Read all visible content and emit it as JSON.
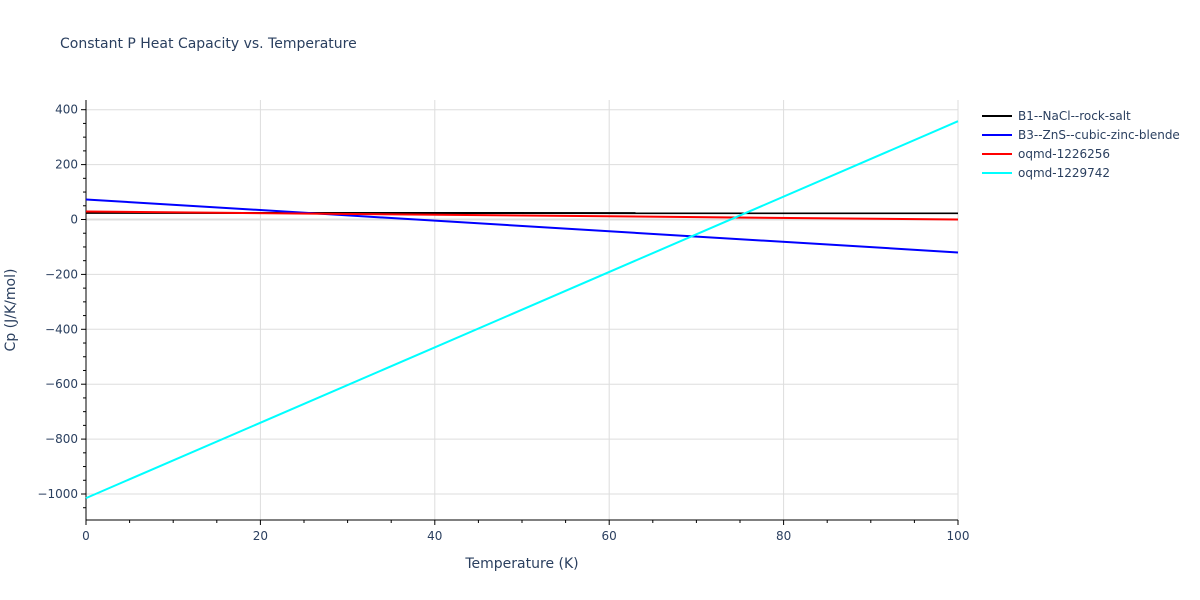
{
  "chart_data": {
    "type": "line",
    "title": "Constant P Heat Capacity vs. Temperature",
    "xlabel": "Temperature (K)",
    "ylabel": "Cp (J/K/mol)",
    "xlim": [
      0,
      100
    ],
    "ylim": [
      -1080,
      435
    ],
    "x_ticks": [
      0,
      20,
      40,
      60,
      80,
      100
    ],
    "y_ticks": [
      400,
      200,
      0,
      -200,
      -400,
      -600,
      -800,
      -1000
    ],
    "y_tick_labels": [
      "400",
      "200",
      "0",
      "−200",
      "−400",
      "−600",
      "−800",
      "−1000"
    ],
    "grid": true,
    "legend_position": "right",
    "x": [
      0,
      100
    ],
    "series": [
      {
        "name": "B1--NaCl--rock-salt",
        "color": "#000000",
        "values": [
          24,
          23
        ]
      },
      {
        "name": "B3--ZnS--cubic-zinc-blende",
        "color": "#0000ff",
        "values": [
          73,
          -120
        ]
      },
      {
        "name": "oqmd-1226256",
        "color": "#ff0000",
        "values": [
          29,
          0
        ]
      },
      {
        "name": "oqmd-1229742",
        "color": "#00ffff",
        "values": [
          -1015,
          358
        ]
      }
    ]
  }
}
